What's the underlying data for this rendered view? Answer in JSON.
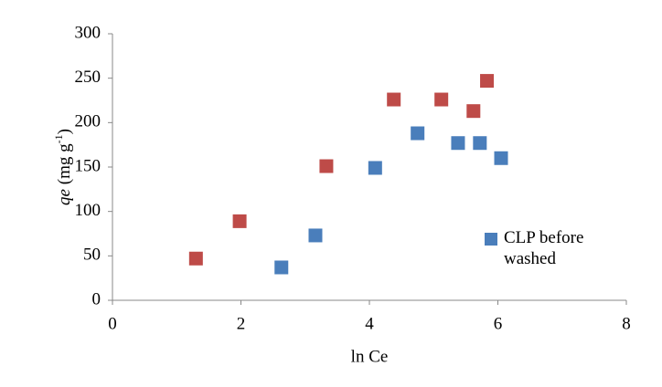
{
  "chart_data": {
    "type": "scatter",
    "xlabel": "ln Ce",
    "ylabel": [
      "qe",
      " (mg g",
      "-1",
      ")"
    ],
    "xlim": [
      0,
      8
    ],
    "xticks": [
      0,
      2,
      4,
      6,
      8
    ],
    "ylim": [
      0,
      300
    ],
    "yticks": [
      0,
      50,
      100,
      150,
      200,
      250,
      300
    ],
    "grid": false,
    "legend": "right",
    "series": [
      {
        "name": "CLP before washed",
        "color": "#4a7ebb",
        "x": [
          2.63,
          3.16,
          4.09,
          4.75,
          5.38,
          5.72,
          6.05
        ],
        "values": [
          37,
          73,
          149,
          188,
          177,
          177,
          160
        ]
      },
      {
        "color": "#be4b48",
        "x": [
          1.3,
          1.98,
          3.33,
          4.38,
          5.12,
          5.62,
          5.83
        ],
        "values": [
          47,
          89,
          151,
          226,
          226,
          213,
          247
        ]
      }
    ]
  }
}
